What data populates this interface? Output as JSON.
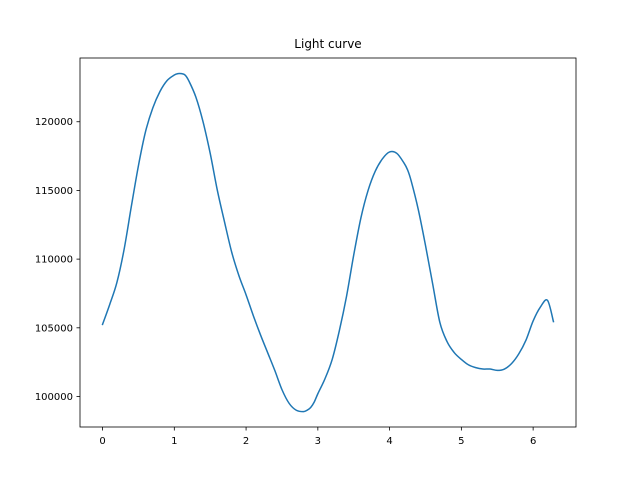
{
  "chart_data": {
    "type": "line",
    "title": "Light curve",
    "xlabel": "",
    "ylabel": "",
    "xlim": [
      -0.3142,
      6.5973
    ],
    "ylim": [
      97780,
      124640
    ],
    "grid": false,
    "legend": "none",
    "x_ticks": [
      0,
      1,
      2,
      3,
      4,
      5,
      6
    ],
    "x_tick_labels": [
      "0",
      "1",
      "2",
      "3",
      "4",
      "5",
      "6"
    ],
    "y_ticks": [
      100000,
      105000,
      110000,
      115000,
      120000
    ],
    "y_tick_labels": [
      "100000",
      "105000",
      "110000",
      "115000",
      "120000"
    ],
    "series": [
      {
        "color": "#1f77b4",
        "x": [
          0,
          0.1,
          0.2,
          0.3,
          0.4,
          0.5,
          0.6,
          0.7,
          0.8,
          0.9,
          1.0,
          1.05,
          1.1,
          1.15,
          1.2,
          1.3,
          1.4,
          1.5,
          1.6,
          1.7,
          1.8,
          1.9,
          2.0,
          2.1,
          2.2,
          2.3,
          2.4,
          2.5,
          2.6,
          2.7,
          2.8,
          2.85,
          2.9,
          2.95,
          3.0,
          3.1,
          3.2,
          3.3,
          3.4,
          3.5,
          3.6,
          3.7,
          3.8,
          3.9,
          4.0,
          4.1,
          4.2,
          4.25,
          4.3,
          4.4,
          4.5,
          4.6,
          4.7,
          4.8,
          4.9,
          5.0,
          5.1,
          5.2,
          5.3,
          5.4,
          5.5,
          5.6,
          5.7,
          5.8,
          5.9,
          6.0,
          6.1,
          6.2,
          6.283
        ],
        "y": [
          105250,
          106700,
          108300,
          110700,
          113800,
          116800,
          119300,
          121000,
          122200,
          123000,
          123400,
          123500,
          123500,
          123400,
          123000,
          121800,
          120000,
          117700,
          115000,
          112700,
          110500,
          108800,
          107400,
          105900,
          104500,
          103200,
          101900,
          100500,
          99500,
          99000,
          98900,
          99000,
          99200,
          99600,
          100200,
          101300,
          102700,
          104800,
          107300,
          110300,
          113000,
          115000,
          116400,
          117300,
          117800,
          117700,
          117000,
          116500,
          115700,
          113600,
          111000,
          108200,
          105400,
          104000,
          103200,
          102700,
          102300,
          102100,
          102000,
          102000,
          101900,
          102000,
          102400,
          103100,
          104100,
          105500,
          106500,
          107000,
          105450
        ]
      }
    ]
  }
}
